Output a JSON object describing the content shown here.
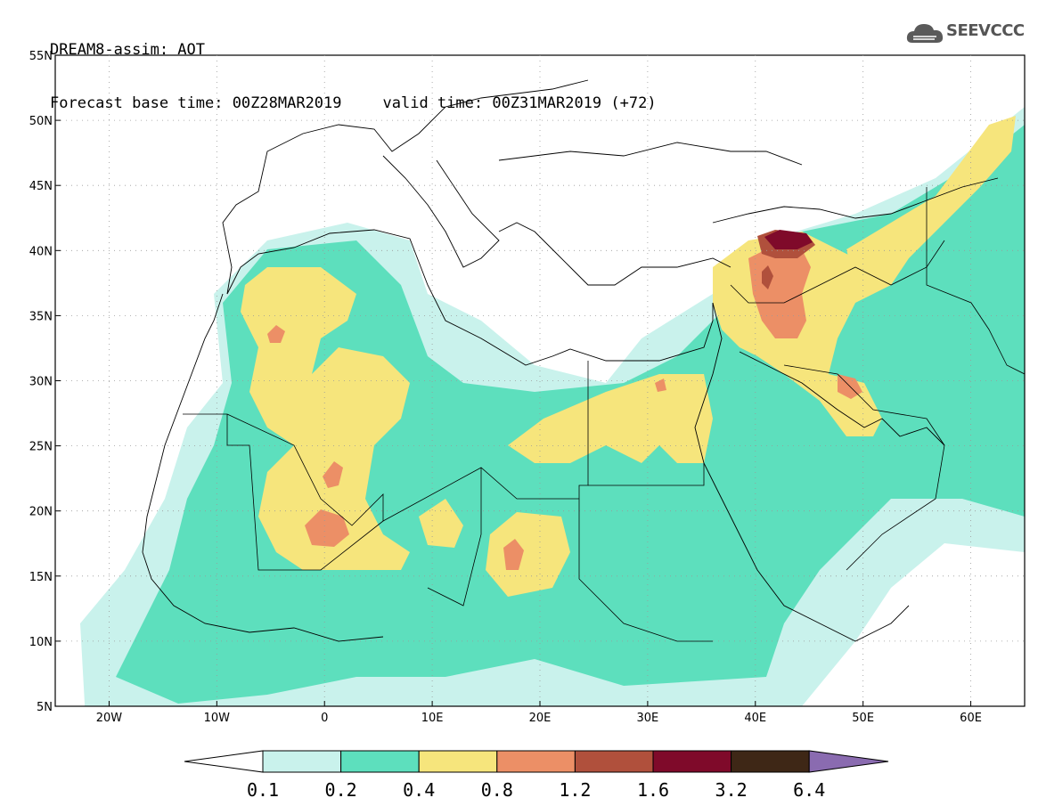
{
  "header": {
    "line1": "DREAM8-assim: AOT",
    "base_time": "Forecast base time: 00Z28MAR2019",
    "valid_time": "valid time: 00Z31MAR2019 (+72)"
  },
  "logo": {
    "text": "SEEVCCC",
    "icon": "cloud-logo-icon"
  },
  "map": {
    "lon_range": [
      -25,
      65
    ],
    "lat_range": [
      5,
      55
    ],
    "lon_ticks": [
      "20W",
      "10W",
      "0",
      "10E",
      "20E",
      "30E",
      "40E",
      "50E",
      "60E"
    ],
    "lat_ticks": [
      "55N",
      "50N",
      "45N",
      "40N",
      "35N",
      "30N",
      "25N",
      "20N",
      "15N",
      "10N",
      "5N"
    ],
    "grid": true
  },
  "colorbar": {
    "labels": [
      "0.1",
      "0.2",
      "0.4",
      "0.8",
      "1.2",
      "1.6",
      "3.2",
      "6.4"
    ],
    "colors": [
      "#ffffff",
      "#c9f2ec",
      "#5ddfbd",
      "#f6e57c",
      "#ec8f66",
      "#b0503c",
      "#7f0a2a",
      "#3e2716",
      "#8a6bb0"
    ]
  }
}
